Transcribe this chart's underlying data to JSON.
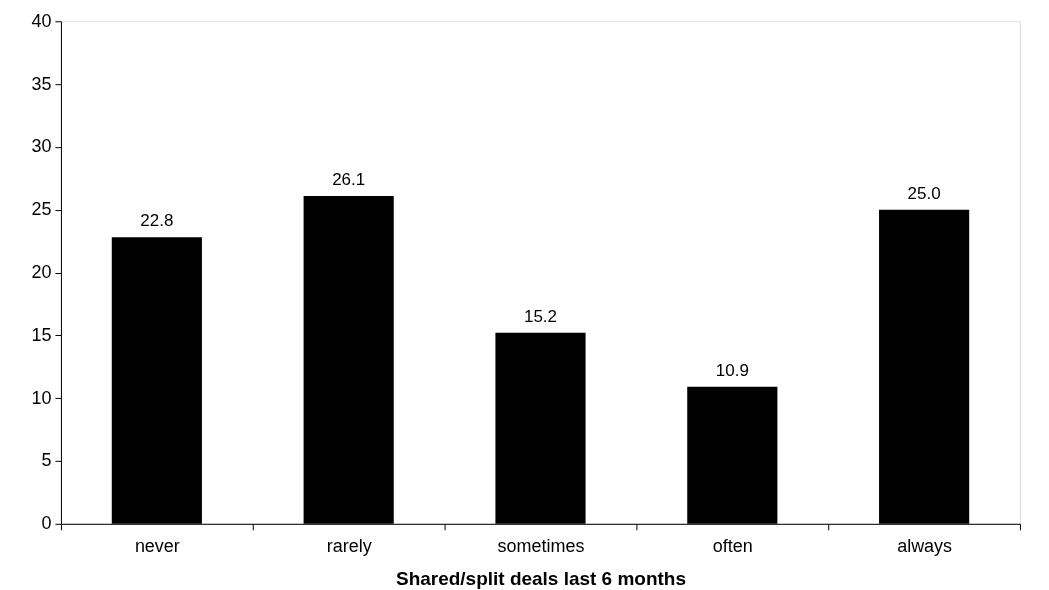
{
  "chart_data": {
    "type": "bar",
    "xlabel": "Shared/split deals last 6 months",
    "categories": [
      "never",
      "rarely",
      "sometimes",
      "often",
      "always"
    ],
    "values": [
      22.8,
      26.1,
      15.2,
      10.9,
      25.0
    ],
    "color": "#000000",
    "value_labels": [
      "22.8",
      "26.1",
      "15.2",
      "10.9",
      "25.0"
    ],
    "ylim": [
      0,
      40
    ],
    "yticks": [
      0,
      5,
      10,
      15,
      20,
      25,
      30,
      35,
      40
    ],
    "grid": false
  }
}
